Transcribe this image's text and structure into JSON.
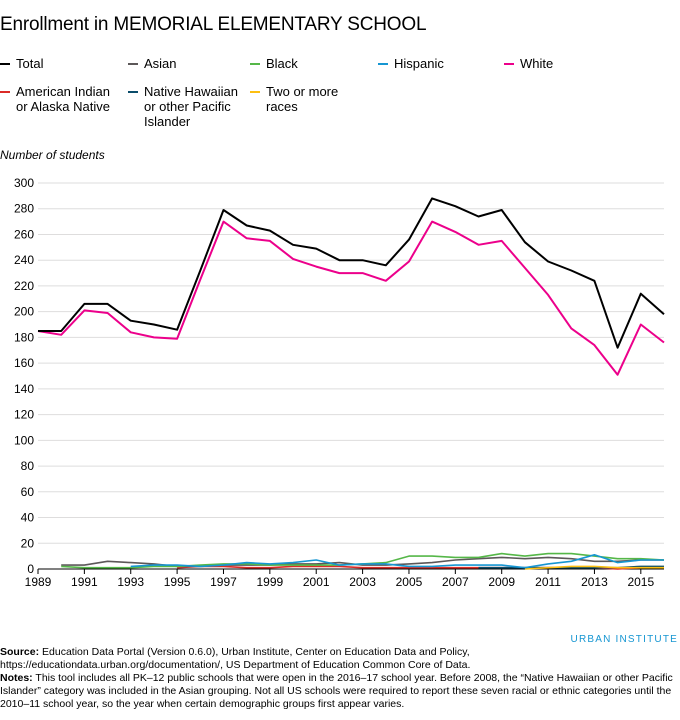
{
  "title": "Enrollment in MEMORIAL ELEMENTARY SCHOOL",
  "brand": "URBAN INSTITUTE",
  "source_label": "Source:",
  "source_text": "Education Data Portal (Version 0.6.0), Urban Institute, Center on Education Data and Policy, https://educationdata.urban.org/documentation/, US Department of Education Common Core of Data.",
  "notes_label": "Notes:",
  "notes_text": "This tool includes all PK–12 public schools that were open in the 2016–17 school year. Before 2008, the “Native Hawaiian or other Pacific Islander” category was included in the Asian grouping. Not all US schools were required to report these seven racial or ethnic categories until the 2010–11 school year, so the year when certain demographic groups first appear varies.",
  "chart_data": {
    "type": "line",
    "title": "Enrollment in MEMORIAL ELEMENTARY SCHOOL",
    "xlabel": "",
    "ylabel": "Number of students",
    "xlim": [
      1989,
      2016
    ],
    "ylim": [
      0,
      300
    ],
    "x_ticks": [
      1989,
      1991,
      1993,
      1995,
      1997,
      1999,
      2001,
      2003,
      2005,
      2007,
      2009,
      2011,
      2013,
      2015
    ],
    "y_ticks": [
      0,
      20,
      40,
      60,
      80,
      100,
      120,
      140,
      160,
      180,
      200,
      220,
      240,
      260,
      280,
      300
    ],
    "grid": "horizontal",
    "legend_position": "top",
    "series": [
      {
        "name": "Total",
        "color": "#000000",
        "points": [
          [
            1989,
            185
          ],
          [
            1990,
            185
          ],
          [
            1991,
            206
          ],
          [
            1992,
            206
          ],
          [
            1993,
            193
          ],
          [
            1994,
            190
          ],
          [
            1995,
            186
          ],
          [
            1996,
            232
          ],
          [
            1997,
            279
          ],
          [
            1998,
            267
          ],
          [
            1999,
            263
          ],
          [
            2000,
            252
          ],
          [
            2001,
            249
          ],
          [
            2002,
            240
          ],
          [
            2003,
            240
          ],
          [
            2004,
            236
          ],
          [
            2005,
            256
          ],
          [
            2006,
            288
          ],
          [
            2007,
            282
          ],
          [
            2008,
            274
          ],
          [
            2009,
            279
          ],
          [
            2010,
            254
          ],
          [
            2011,
            239
          ],
          [
            2012,
            232
          ],
          [
            2013,
            224
          ],
          [
            2014,
            172
          ],
          [
            2015,
            214
          ],
          [
            2016,
            198
          ]
        ]
      },
      {
        "name": "Asian",
        "color": "#5c5859",
        "points": [
          [
            1990,
            3
          ],
          [
            1991,
            3
          ],
          [
            1992,
            6
          ],
          [
            1993,
            5
          ],
          [
            1994,
            4
          ],
          [
            1995,
            2
          ],
          [
            1996,
            2
          ],
          [
            1997,
            3
          ],
          [
            1998,
            3
          ],
          [
            1999,
            3
          ],
          [
            2000,
            4
          ],
          [
            2001,
            4
          ],
          [
            2002,
            5
          ],
          [
            2003,
            3
          ],
          [
            2004,
            3
          ],
          [
            2005,
            4
          ],
          [
            2006,
            5
          ],
          [
            2007,
            7
          ],
          [
            2008,
            8
          ],
          [
            2009,
            9
          ],
          [
            2010,
            8
          ],
          [
            2011,
            9
          ],
          [
            2012,
            8
          ],
          [
            2013,
            6
          ],
          [
            2014,
            6
          ],
          [
            2015,
            7
          ],
          [
            2016,
            7
          ]
        ]
      },
      {
        "name": "Black",
        "color": "#55b748",
        "points": [
          [
            1990,
            2
          ],
          [
            1991,
            1
          ],
          [
            1992,
            1
          ],
          [
            1993,
            1
          ],
          [
            1994,
            2
          ],
          [
            1995,
            2
          ],
          [
            1996,
            3
          ],
          [
            1997,
            4
          ],
          [
            1998,
            4
          ],
          [
            1999,
            3
          ],
          [
            2000,
            3
          ],
          [
            2001,
            3
          ],
          [
            2002,
            3
          ],
          [
            2003,
            4
          ],
          [
            2004,
            5
          ],
          [
            2005,
            10
          ],
          [
            2006,
            10
          ],
          [
            2007,
            9
          ],
          [
            2008,
            9
          ],
          [
            2009,
            12
          ],
          [
            2010,
            10
          ],
          [
            2011,
            12
          ],
          [
            2012,
            12
          ],
          [
            2013,
            10
          ],
          [
            2014,
            8
          ],
          [
            2015,
            8
          ],
          [
            2016,
            7
          ]
        ]
      },
      {
        "name": "Hispanic",
        "color": "#1696d2",
        "points": [
          [
            1993,
            2
          ],
          [
            1994,
            3
          ],
          [
            1995,
            3
          ],
          [
            1996,
            2
          ],
          [
            1997,
            3
          ],
          [
            1998,
            5
          ],
          [
            1999,
            4
          ],
          [
            2000,
            5
          ],
          [
            2001,
            7
          ],
          [
            2002,
            3
          ],
          [
            2003,
            4
          ],
          [
            2004,
            4
          ],
          [
            2005,
            2
          ],
          [
            2006,
            2
          ],
          [
            2007,
            3
          ],
          [
            2008,
            3
          ],
          [
            2009,
            3
          ],
          [
            2010,
            1
          ],
          [
            2011,
            4
          ],
          [
            2012,
            6
          ],
          [
            2013,
            11
          ],
          [
            2014,
            5
          ],
          [
            2015,
            7
          ],
          [
            2016,
            7
          ]
        ]
      },
      {
        "name": "White",
        "color": "#ec008b",
        "points": [
          [
            1989,
            185
          ],
          [
            1990,
            182
          ],
          [
            1991,
            201
          ],
          [
            1992,
            199
          ],
          [
            1993,
            184
          ],
          [
            1994,
            180
          ],
          [
            1995,
            179
          ],
          [
            1996,
            225
          ],
          [
            1997,
            270
          ],
          [
            1998,
            257
          ],
          [
            1999,
            255
          ],
          [
            2000,
            241
          ],
          [
            2001,
            235
          ],
          [
            2002,
            230
          ],
          [
            2003,
            230
          ],
          [
            2004,
            224
          ],
          [
            2005,
            239
          ],
          [
            2006,
            270
          ],
          [
            2007,
            262
          ],
          [
            2008,
            252
          ],
          [
            2009,
            255
          ],
          [
            2010,
            234
          ],
          [
            2011,
            213
          ],
          [
            2012,
            187
          ],
          [
            2013,
            174
          ],
          [
            2014,
            151
          ],
          [
            2015,
            190
          ],
          [
            2016,
            176
          ]
        ]
      },
      {
        "name": "American Indian\nor Alaska Native",
        "color": "#db2b27",
        "points": [
          [
            1995,
            1
          ],
          [
            1996,
            2
          ],
          [
            1997,
            2
          ],
          [
            1998,
            1
          ],
          [
            1999,
            1
          ],
          [
            2000,
            2
          ],
          [
            2001,
            2
          ],
          [
            2002,
            2
          ],
          [
            2003,
            1
          ],
          [
            2004,
            1
          ],
          [
            2005,
            1
          ],
          [
            2006,
            1
          ],
          [
            2007,
            1
          ],
          [
            2008,
            1
          ],
          [
            2009,
            1
          ],
          [
            2010,
            1
          ],
          [
            2011,
            1
          ],
          [
            2012,
            1
          ],
          [
            2013,
            1
          ],
          [
            2014,
            0
          ],
          [
            2015,
            1
          ],
          [
            2016,
            1
          ]
        ]
      },
      {
        "name": "Native Hawaiian\nor other Pacific\nIslander",
        "color": "#0a4c6a",
        "points": [
          [
            2008,
            1
          ],
          [
            2009,
            1
          ],
          [
            2010,
            1
          ],
          [
            2011,
            1
          ],
          [
            2012,
            1
          ],
          [
            2013,
            1
          ],
          [
            2014,
            1
          ],
          [
            2015,
            2
          ],
          [
            2016,
            2
          ]
        ]
      },
      {
        "name": "Two or more\nraces",
        "color": "#fdbf11",
        "points": [
          [
            2010,
            0
          ],
          [
            2011,
            1
          ],
          [
            2012,
            2
          ],
          [
            2013,
            2
          ],
          [
            2014,
            1
          ],
          [
            2015,
            1
          ],
          [
            2016,
            1
          ]
        ]
      }
    ]
  }
}
